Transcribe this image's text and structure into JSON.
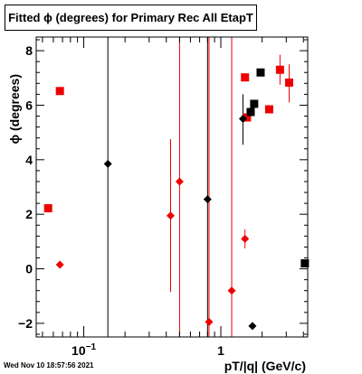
{
  "header": {
    "title": "Fitted ϕ (degrees) for Primary Rec All EtapT",
    "timestamp": "Wed Nov 10 18:57:56 2021"
  },
  "chart_data": {
    "type": "scatter",
    "title": "Fitted ϕ (degrees) for Primary Rec All EtapT",
    "xlabel": "pT/|q| (GeV/c)",
    "ylabel": "ϕ (degrees)",
    "xscale": "log",
    "xlim": [
      0.045,
      4.3
    ],
    "ylim": [
      -2.5,
      8.5
    ],
    "x_tick_labels": [
      {
        "value": 0.1,
        "base": "10",
        "exp": "−1"
      },
      {
        "value": 1,
        "base": "1",
        "exp": ""
      }
    ],
    "y_tick_labels": [
      {
        "value": -2,
        "label": "−2"
      },
      {
        "value": 0,
        "label": "0"
      },
      {
        "value": 2,
        "label": "2"
      },
      {
        "value": 4,
        "label": "4"
      },
      {
        "value": 6,
        "label": "6"
      },
      {
        "value": 8,
        "label": "8"
      }
    ],
    "grid": false,
    "colors": {
      "red": "#ee0000",
      "black": "#000000"
    },
    "series": [
      {
        "color": "#ee0000",
        "marker": "square",
        "points": [
          {
            "x": 0.055,
            "y": 2.22,
            "ylo": 2.22,
            "yhi": 2.22
          },
          {
            "x": 0.067,
            "y": 6.52,
            "ylo": 6.52,
            "yhi": 6.52
          },
          {
            "x": 1.5,
            "y": 7.02,
            "ylo": 7.02,
            "yhi": 7.02
          },
          {
            "x": 1.55,
            "y": 5.55,
            "ylo": 5.55,
            "yhi": 5.55
          },
          {
            "x": 2.25,
            "y": 5.85,
            "ylo": 5.85,
            "yhi": 5.85
          },
          {
            "x": 2.7,
            "y": 7.3,
            "ylo": 6.75,
            "yhi": 7.85
          },
          {
            "x": 3.15,
            "y": 6.83,
            "ylo": 6.1,
            "yhi": 7.5
          }
        ]
      },
      {
        "color": "#000000",
        "marker": "square",
        "points": [
          {
            "x": 1.65,
            "y": 5.75,
            "ylo": 5.75,
            "yhi": 5.75
          },
          {
            "x": 1.75,
            "y": 6.05,
            "ylo": 6.05,
            "yhi": 6.05
          },
          {
            "x": 1.95,
            "y": 7.2,
            "ylo": 7.2,
            "yhi": 7.2
          },
          {
            "x": 4.1,
            "y": 0.2,
            "ylo": 0.2,
            "yhi": 0.2
          }
        ]
      },
      {
        "color": "#ee0000",
        "marker": "diamond",
        "points": [
          {
            "x": 0.067,
            "y": 0.15,
            "ylo": 0.15,
            "yhi": 0.15
          },
          {
            "x": 0.43,
            "y": 1.95,
            "ylo": -0.85,
            "yhi": 4.75
          },
          {
            "x": 0.5,
            "y": 3.2,
            "ylo": -2.5,
            "yhi": 8.5
          },
          {
            "x": 0.82,
            "y": -1.95,
            "ylo": -2.5,
            "yhi": 8.5
          },
          {
            "x": 1.2,
            "y": -0.8,
            "ylo": -2.5,
            "yhi": 8.5
          },
          {
            "x": 1.5,
            "y": 1.1,
            "ylo": 0.75,
            "yhi": 1.45
          }
        ]
      },
      {
        "color": "#000000",
        "marker": "diamond",
        "points": [
          {
            "x": 0.15,
            "y": 3.85,
            "ylo": -2.5,
            "yhi": 8.5
          },
          {
            "x": 0.8,
            "y": 2.55,
            "ylo": -2.5,
            "yhi": 8.5
          },
          {
            "x": 1.45,
            "y": 5.5,
            "ylo": 4.55,
            "yhi": 6.4
          },
          {
            "x": 1.7,
            "y": -2.1,
            "ylo": -2.1,
            "yhi": -2.1
          }
        ]
      }
    ]
  }
}
